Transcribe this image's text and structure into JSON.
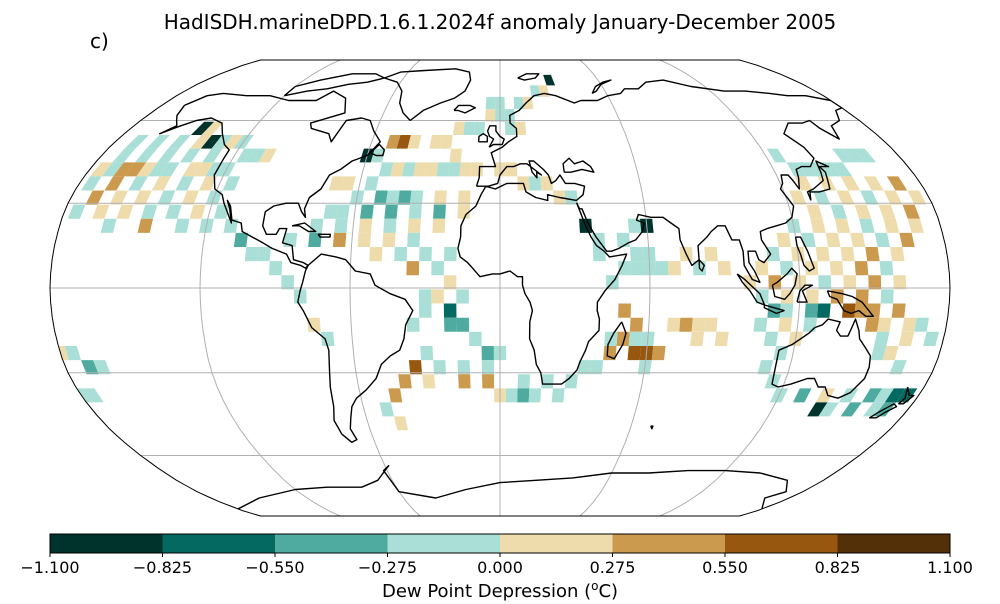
{
  "title": "HadISDH.marineDPD.1.6.1.2024f anomaly January-December 2005",
  "panel_label": "c)",
  "colorbar": {
    "label_prefix": "Dew Point Depression (",
    "label_sup": "o",
    "label_suffix": "C)",
    "ticks": [
      "−1.100",
      "−0.825",
      "−0.550",
      "−0.275",
      "0.000",
      "0.275",
      "0.550",
      "0.825",
      "1.100"
    ],
    "colors": [
      "#01332d",
      "#046a61",
      "#4fab9f",
      "#a9dfd6",
      "#efdcad",
      "#cb9a4e",
      "#97570f",
      "#533008"
    ]
  },
  "projection": "Robinson",
  "grid": true,
  "chart_data": {
    "type": "heatmap",
    "variable": "Dew Point Depression anomaly",
    "units": "oC",
    "levels": [
      -1.1,
      -0.825,
      -0.55,
      -0.275,
      0.0,
      0.275,
      0.55,
      0.825,
      1.1
    ],
    "grid_resolution_deg": 5,
    "cells": [
      [
        -145,
        57,
        0
      ],
      [
        -140,
        57,
        4
      ],
      [
        -135,
        52,
        0
      ],
      [
        -130,
        52,
        3
      ],
      [
        -125,
        52,
        4
      ],
      [
        -120,
        52,
        3
      ],
      [
        -115,
        47,
        3
      ],
      [
        -110,
        47,
        3
      ],
      [
        -105,
        47,
        4
      ],
      [
        -130,
        47,
        3
      ],
      [
        -140,
        47,
        3
      ],
      [
        -150,
        47,
        3
      ],
      [
        -160,
        47,
        3
      ],
      [
        -170,
        47,
        3
      ],
      [
        -150,
        52,
        3
      ],
      [
        -160,
        52,
        3
      ],
      [
        -170,
        52,
        3
      ],
      [
        -140,
        52,
        4
      ],
      [
        -145,
        42,
        3
      ],
      [
        -150,
        42,
        3
      ],
      [
        -155,
        42,
        4
      ],
      [
        -160,
        42,
        5
      ],
      [
        -165,
        42,
        5
      ],
      [
        -170,
        42,
        3
      ],
      [
        -175,
        42,
        4
      ],
      [
        -135,
        42,
        4
      ],
      [
        -130,
        42,
        4
      ],
      [
        -125,
        42,
        3
      ],
      [
        -120,
        42,
        3
      ],
      [
        -115,
        37,
        3
      ],
      [
        -125,
        37,
        4
      ],
      [
        -135,
        37,
        3
      ],
      [
        -145,
        37,
        4
      ],
      [
        -155,
        37,
        3
      ],
      [
        -165,
        37,
        5
      ],
      [
        -175,
        37,
        3
      ],
      [
        -170,
        32,
        5
      ],
      [
        -160,
        32,
        4
      ],
      [
        -150,
        32,
        4
      ],
      [
        -140,
        32,
        3
      ],
      [
        -130,
        32,
        4
      ],
      [
        -120,
        32,
        3
      ],
      [
        -115,
        27,
        3
      ],
      [
        -125,
        27,
        4
      ],
      [
        -135,
        27,
        3
      ],
      [
        -145,
        27,
        3
      ],
      [
        -155,
        27,
        4
      ],
      [
        -165,
        27,
        4
      ],
      [
        -175,
        27,
        3
      ],
      [
        -160,
        22,
        3
      ],
      [
        -145,
        22,
        5
      ],
      [
        -130,
        22,
        3
      ],
      [
        -120,
        22,
        3
      ],
      [
        -110,
        22,
        3
      ],
      [
        -105,
        17,
        2
      ],
      [
        -100,
        12,
        3
      ],
      [
        -95,
        12,
        3
      ],
      [
        -90,
        7,
        3
      ],
      [
        -85,
        2,
        3
      ],
      [
        -80,
        -3,
        3
      ],
      [
        -75,
        -13,
        4
      ],
      [
        -70,
        -18,
        3
      ],
      [
        -60,
        47,
        0
      ],
      [
        -55,
        47,
        3
      ],
      [
        -50,
        42,
        3
      ],
      [
        -45,
        42,
        4
      ],
      [
        -40,
        42,
        3
      ],
      [
        -35,
        42,
        4
      ],
      [
        -30,
        42,
        4
      ],
      [
        -25,
        42,
        3
      ],
      [
        -20,
        42,
        3
      ],
      [
        -15,
        42,
        4
      ],
      [
        -10,
        42,
        4
      ],
      [
        -20,
        47,
        4
      ],
      [
        -25,
        52,
        4
      ],
      [
        -30,
        52,
        4
      ],
      [
        -20,
        57,
        4
      ],
      [
        -15,
        57,
        3
      ],
      [
        -10,
        57,
        3
      ],
      [
        -5,
        62,
        4
      ],
      [
        0,
        62,
        3
      ],
      [
        -50,
        52,
        5
      ],
      [
        -45,
        52,
        6
      ],
      [
        -40,
        52,
        4
      ],
      [
        -55,
        37,
        3
      ],
      [
        -65,
        37,
        4
      ],
      [
        -70,
        37,
        4
      ],
      [
        -60,
        32,
        3
      ],
      [
        -50,
        32,
        2
      ],
      [
        -45,
        32,
        3
      ],
      [
        -40,
        32,
        2
      ],
      [
        -35,
        32,
        3
      ],
      [
        -25,
        32,
        4
      ],
      [
        -15,
        32,
        4
      ],
      [
        -70,
        27,
        3
      ],
      [
        -65,
        27,
        3
      ],
      [
        -55,
        27,
        2
      ],
      [
        -45,
        27,
        2
      ],
      [
        -35,
        27,
        3
      ],
      [
        -25,
        27,
        2
      ],
      [
        -15,
        27,
        4
      ],
      [
        -75,
        22,
        3
      ],
      [
        -65,
        22,
        3
      ],
      [
        -55,
        22,
        4
      ],
      [
        -45,
        22,
        3
      ],
      [
        -35,
        22,
        4
      ],
      [
        -25,
        22,
        4
      ],
      [
        -85,
        17,
        3
      ],
      [
        -75,
        17,
        2
      ],
      [
        -65,
        17,
        5
      ],
      [
        -55,
        17,
        4
      ],
      [
        -45,
        17,
        4
      ],
      [
        -35,
        17,
        3
      ],
      [
        -30,
        12,
        3
      ],
      [
        -20,
        12,
        3
      ],
      [
        -40,
        12,
        3
      ],
      [
        -50,
        12,
        4
      ],
      [
        -25,
        7,
        3
      ],
      [
        -35,
        7,
        5
      ],
      [
        -20,
        2,
        4
      ],
      [
        -30,
        -3,
        3
      ],
      [
        -25,
        -3,
        4
      ],
      [
        -15,
        -3,
        3
      ],
      [
        -20,
        -8,
        1
      ],
      [
        -30,
        -8,
        3
      ],
      [
        -20,
        -13,
        2
      ],
      [
        -15,
        -13,
        2
      ],
      [
        -35,
        -13,
        3
      ],
      [
        -10,
        -18,
        3
      ],
      [
        -5,
        -23,
        2
      ],
      [
        0,
        -23,
        3
      ],
      [
        -30,
        -23,
        3
      ],
      [
        -35,
        -28,
        6
      ],
      [
        -25,
        -28,
        3
      ],
      [
        -15,
        -28,
        3
      ],
      [
        -5,
        -28,
        3
      ],
      [
        -30,
        -33,
        4
      ],
      [
        -15,
        -33,
        5
      ],
      [
        -5,
        -33,
        5
      ],
      [
        10,
        -33,
        3
      ],
      [
        -40,
        -33,
        5
      ],
      [
        -45,
        -38,
        5
      ],
      [
        5,
        -38,
        3
      ],
      [
        0,
        -38,
        4
      ],
      [
        10,
        -38,
        2
      ],
      [
        15,
        -38,
        3
      ],
      [
        -45,
        -48,
        4
      ],
      [
        -50,
        -43,
        3
      ],
      [
        0,
        42,
        4
      ],
      [
        5,
        42,
        4
      ],
      [
        10,
        37,
        4
      ],
      [
        15,
        37,
        3
      ],
      [
        20,
        37,
        4
      ],
      [
        25,
        32,
        4
      ],
      [
        30,
        32,
        3
      ],
      [
        5,
        57,
        3
      ],
      [
        10,
        57,
        4
      ],
      [
        5,
        62,
        3
      ],
      [
        10,
        67,
        3
      ],
      [
        15,
        67,
        4
      ],
      [
        20,
        72,
        3
      ],
      [
        25,
        72,
        4
      ],
      [
        30,
        77,
        0
      ],
      [
        -5,
        67,
        3
      ],
      [
        0,
        67,
        3
      ],
      [
        35,
        22,
        0
      ],
      [
        40,
        17,
        3
      ],
      [
        40,
        12,
        3
      ],
      [
        50,
        17,
        3
      ],
      [
        55,
        22,
        3
      ],
      [
        60,
        22,
        0
      ],
      [
        55,
        12,
        3
      ],
      [
        60,
        12,
        3
      ],
      [
        45,
        2,
        3
      ],
      [
        50,
        7,
        3
      ],
      [
        55,
        7,
        3
      ],
      [
        60,
        7,
        3
      ],
      [
        65,
        7,
        3
      ],
      [
        70,
        7,
        4
      ],
      [
        75,
        12,
        4
      ],
      [
        85,
        12,
        4
      ],
      [
        80,
        7,
        3
      ],
      [
        90,
        7,
        4
      ],
      [
        50,
        -8,
        5
      ],
      [
        55,
        -13,
        5
      ],
      [
        50,
        -18,
        5
      ],
      [
        45,
        -18,
        3
      ],
      [
        55,
        -18,
        3
      ],
      [
        60,
        -18,
        3
      ],
      [
        45,
        -23,
        5
      ],
      [
        55,
        -23,
        6
      ],
      [
        60,
        -23,
        6
      ],
      [
        65,
        -23,
        5
      ],
      [
        40,
        -28,
        3
      ],
      [
        35,
        -28,
        3
      ],
      [
        30,
        -33,
        3
      ],
      [
        20,
        -33,
        3
      ],
      [
        25,
        -38,
        3
      ],
      [
        70,
        -13,
        4
      ],
      [
        75,
        -13,
        5
      ],
      [
        80,
        -13,
        4
      ],
      [
        85,
        -13,
        4
      ],
      [
        80,
        -18,
        4
      ],
      [
        90,
        -18,
        4
      ],
      [
        60,
        -28,
        3
      ],
      [
        125,
        47,
        3
      ],
      [
        130,
        42,
        3
      ],
      [
        135,
        42,
        3
      ],
      [
        140,
        42,
        3
      ],
      [
        145,
        42,
        3
      ],
      [
        150,
        42,
        3
      ],
      [
        155,
        47,
        3
      ],
      [
        160,
        47,
        3
      ],
      [
        165,
        47,
        3
      ],
      [
        130,
        37,
        4
      ],
      [
        140,
        37,
        4
      ],
      [
        150,
        37,
        4
      ],
      [
        160,
        37,
        4
      ],
      [
        170,
        37,
        5
      ],
      [
        125,
        32,
        4
      ],
      [
        135,
        32,
        3
      ],
      [
        145,
        32,
        4
      ],
      [
        155,
        32,
        3
      ],
      [
        165,
        32,
        4
      ],
      [
        175,
        32,
        4
      ],
      [
        130,
        27,
        4
      ],
      [
        140,
        27,
        3
      ],
      [
        150,
        27,
        4
      ],
      [
        160,
        27,
        4
      ],
      [
        170,
        27,
        5
      ],
      [
        120,
        22,
        3
      ],
      [
        130,
        22,
        4
      ],
      [
        140,
        22,
        4
      ],
      [
        150,
        22,
        3
      ],
      [
        160,
        22,
        4
      ],
      [
        170,
        22,
        4
      ],
      [
        115,
        17,
        4
      ],
      [
        125,
        17,
        3
      ],
      [
        135,
        17,
        4
      ],
      [
        145,
        17,
        4
      ],
      [
        155,
        17,
        3
      ],
      [
        165,
        17,
        5
      ],
      [
        110,
        12,
        3
      ],
      [
        120,
        12,
        4
      ],
      [
        130,
        12,
        4
      ],
      [
        140,
        12,
        4
      ],
      [
        150,
        12,
        5
      ],
      [
        160,
        12,
        4
      ],
      [
        105,
        7,
        4
      ],
      [
        115,
        7,
        3
      ],
      [
        125,
        7,
        4
      ],
      [
        135,
        7,
        4
      ],
      [
        145,
        7,
        5
      ],
      [
        155,
        7,
        3
      ],
      [
        100,
        2,
        4
      ],
      [
        110,
        2,
        5
      ],
      [
        120,
        2,
        4
      ],
      [
        130,
        2,
        3
      ],
      [
        140,
        2,
        4
      ],
      [
        150,
        2,
        5
      ],
      [
        160,
        2,
        4
      ],
      [
        105,
        -3,
        3
      ],
      [
        115,
        -3,
        4
      ],
      [
        125,
        -3,
        4
      ],
      [
        135,
        -3,
        5
      ],
      [
        145,
        -3,
        5
      ],
      [
        155,
        -3,
        3
      ],
      [
        110,
        -8,
        2
      ],
      [
        115,
        -8,
        3
      ],
      [
        125,
        -8,
        2
      ],
      [
        130,
        -8,
        1
      ],
      [
        140,
        -8,
        6
      ],
      [
        145,
        -8,
        5
      ],
      [
        150,
        -8,
        5
      ],
      [
        160,
        -8,
        5
      ],
      [
        105,
        -13,
        3
      ],
      [
        115,
        -13,
        4
      ],
      [
        125,
        -13,
        3
      ],
      [
        150,
        -13,
        5
      ],
      [
        155,
        -13,
        4
      ],
      [
        165,
        -13,
        4
      ],
      [
        170,
        -13,
        3
      ],
      [
        110,
        -18,
        3
      ],
      [
        120,
        -18,
        4
      ],
      [
        155,
        -18,
        3
      ],
      [
        165,
        -18,
        4
      ],
      [
        175,
        -18,
        3
      ],
      [
        115,
        -23,
        3
      ],
      [
        155,
        -23,
        3
      ],
      [
        160,
        -23,
        4
      ],
      [
        165,
        -28,
        3
      ],
      [
        110,
        -28,
        3
      ],
      [
        115,
        -33,
        3
      ],
      [
        120,
        -38,
        3
      ],
      [
        130,
        -38,
        2
      ],
      [
        140,
        -38,
        4
      ],
      [
        150,
        -38,
        3
      ],
      [
        160,
        -38,
        2
      ],
      [
        165,
        -38,
        3
      ],
      [
        170,
        -38,
        1
      ],
      [
        175,
        -38,
        1
      ],
      [
        145,
        -43,
        3
      ],
      [
        155,
        -43,
        2
      ],
      [
        165,
        -43,
        3
      ],
      [
        170,
        -43,
        2
      ],
      [
        140,
        -43,
        0
      ],
      [
        -180,
        -23,
        4
      ],
      [
        -175,
        -23,
        3
      ],
      [
        -170,
        -28,
        2
      ],
      [
        -165,
        -28,
        3
      ],
      [
        -180,
        -38,
        3
      ],
      [
        -175,
        -38,
        3
      ]
    ]
  }
}
